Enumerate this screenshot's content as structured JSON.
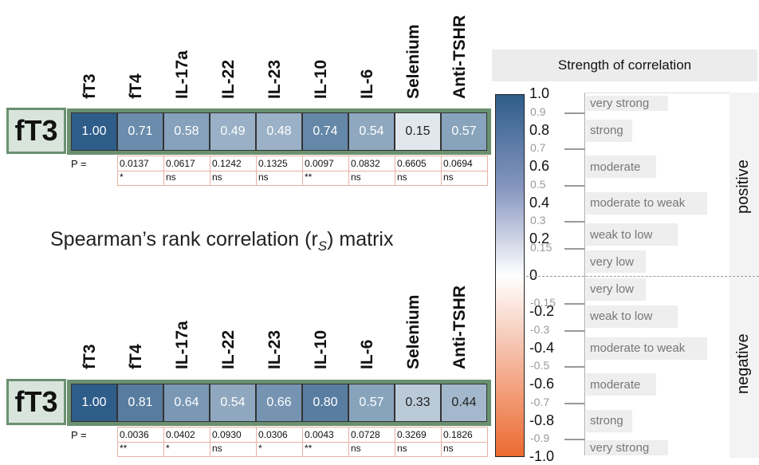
{
  "chart_data": [
    {
      "type": "heatmap",
      "row": "fT3",
      "columns": [
        "fT3",
        "fT4",
        "IL-17a",
        "IL-22",
        "IL-23",
        "IL-10",
        "IL-6",
        "Selenium",
        "Anti-TSHR"
      ],
      "values": [
        1.0,
        0.71,
        0.58,
        0.49,
        0.48,
        0.74,
        0.54,
        0.15,
        0.57
      ],
      "labels": [
        "1.00",
        "0.71",
        "0.58",
        "0.49",
        "0.48",
        "0.74",
        "0.54",
        "0.15",
        "0.57"
      ],
      "p_prefix": "P =",
      "p_values": [
        "",
        "0.0137",
        "0.0617",
        "0.1242",
        "0.1325",
        "0.0097",
        "0.0832",
        "0.6605",
        "0.0694"
      ],
      "significance": [
        "",
        "*",
        "ns",
        "ns",
        "ns",
        "**",
        "ns",
        "ns",
        "ns"
      ]
    },
    {
      "type": "heatmap",
      "row": "fT3",
      "columns": [
        "fT3",
        "fT4",
        "IL-17a",
        "IL-22",
        "IL-23",
        "IL-10",
        "IL-6",
        "Selenium",
        "Anti-TSHR"
      ],
      "values": [
        1.0,
        0.81,
        0.64,
        0.54,
        0.66,
        0.8,
        0.57,
        0.33,
        0.44
      ],
      "labels": [
        "1.00",
        "0.81",
        "0.64",
        "0.54",
        "0.66",
        "0.80",
        "0.57",
        "0.33",
        "0.44"
      ],
      "p_prefix": "P =",
      "p_values": [
        "",
        "0.0036",
        "0.0402",
        "0.0930",
        "0.0306",
        "0.0043",
        "0.0728",
        "0.3269",
        "0.1826"
      ],
      "significance": [
        "",
        "**",
        "*",
        "ns",
        "*",
        "**",
        "ns",
        "ns",
        "ns"
      ]
    }
  ],
  "caption": {
    "main": "Spearman’s rank correlation (r",
    "sub": "S",
    "end": ") matrix"
  },
  "legend": {
    "title": "Strength of correlation",
    "range": [
      -1,
      1
    ],
    "colors": {
      "max": "#2f5d8a",
      "mid": "#ffffff",
      "min": "#ec6a30"
    },
    "major_ticks": [
      {
        "v": 1.0,
        "t": "1.0"
      },
      {
        "v": 0.8,
        "t": "0.8"
      },
      {
        "v": 0.6,
        "t": "0.6"
      },
      {
        "v": 0.4,
        "t": "0.4"
      },
      {
        "v": 0.2,
        "t": "0.2"
      },
      {
        "v": 0.0,
        "t": "0"
      },
      {
        "v": -0.2,
        "t": "-0.2"
      },
      {
        "v": -0.4,
        "t": "-0.4"
      },
      {
        "v": -0.6,
        "t": "-0.6"
      },
      {
        "v": -0.8,
        "t": "-0.8"
      },
      {
        "v": -1.0,
        "t": "-1.0"
      }
    ],
    "minor_ticks": [
      {
        "v": 0.9,
        "t": "0.9"
      },
      {
        "v": 0.7,
        "t": "0.7"
      },
      {
        "v": 0.5,
        "t": "0.5"
      },
      {
        "v": 0.3,
        "t": "0.3"
      },
      {
        "v": 0.15,
        "t": "0.15"
      },
      {
        "v": -0.15,
        "t": "-0.15"
      },
      {
        "v": -0.3,
        "t": "-0.3"
      },
      {
        "v": -0.5,
        "t": "-0.5"
      },
      {
        "v": -0.7,
        "t": "-0.7"
      },
      {
        "v": -0.9,
        "t": "-0.9"
      }
    ],
    "categories": [
      {
        "label": "very strong",
        "from": 0.9,
        "to": 1.0
      },
      {
        "label": "strong",
        "from": 0.7,
        "to": 0.9
      },
      {
        "label": "moderate",
        "from": 0.5,
        "to": 0.7
      },
      {
        "label": "moderate to weak",
        "from": 0.3,
        "to": 0.5
      },
      {
        "label": "weak to low",
        "from": 0.15,
        "to": 0.3
      },
      {
        "label": "very low",
        "from": 0.0,
        "to": 0.15
      },
      {
        "label": "very low",
        "from": -0.15,
        "to": 0.0
      },
      {
        "label": "weak to low",
        "from": -0.3,
        "to": -0.15
      },
      {
        "label": "moderate to weak",
        "from": -0.5,
        "to": -0.3
      },
      {
        "label": "moderate",
        "from": -0.7,
        "to": -0.5
      },
      {
        "label": "strong",
        "from": -0.9,
        "to": -0.7
      },
      {
        "label": "very strong",
        "from": -1.0,
        "to": -0.9
      }
    ],
    "positive_label": "positive",
    "negative_label": "negative"
  }
}
